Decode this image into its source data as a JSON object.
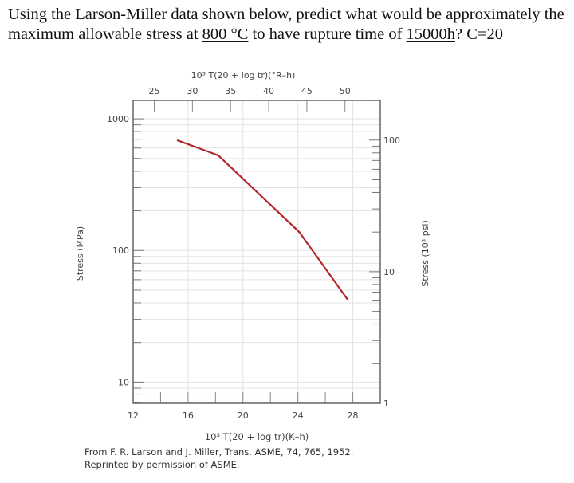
{
  "question": {
    "part1": "Using the Larson-Miller data shown below, predict what would be approximately the maximum allowable stress at ",
    "temp": "800 °C",
    "part2": " to have rupture time of ",
    "time": "15000h",
    "part3": "? C=20"
  },
  "chart_data": {
    "type": "line",
    "top_axis_title": "10³ T(20 + log tr)(°R–h)",
    "xlabel": "10³ T(20 + log tr)(K–h)",
    "ylabel_left": "Stress (MPa)",
    "ylabel_right": "Stress (10³ psi)",
    "xlim": [
      12,
      30
    ],
    "ylim": [
      6.9,
      1380
    ],
    "y_scale": "log",
    "grid": true,
    "x_ticks": [
      12,
      16,
      20,
      24,
      28
    ],
    "top_ticks": [
      25,
      30,
      35,
      40,
      45,
      50
    ],
    "y_ticks_left": [
      10,
      100,
      1000
    ],
    "y_ticks_right": [
      1,
      10,
      100
    ],
    "line_color": "#b3262b",
    "series": [
      {
        "x": [
          15.2,
          18.2,
          24.1,
          27.65
        ],
        "y": [
          688,
          528,
          138,
          42
        ]
      }
    ]
  },
  "caption": {
    "line1": "From F. R. Larson and J. Miller, Trans. ASME, 74, 765, 1952.",
    "line2": "Reprinted by permission of ASME."
  }
}
